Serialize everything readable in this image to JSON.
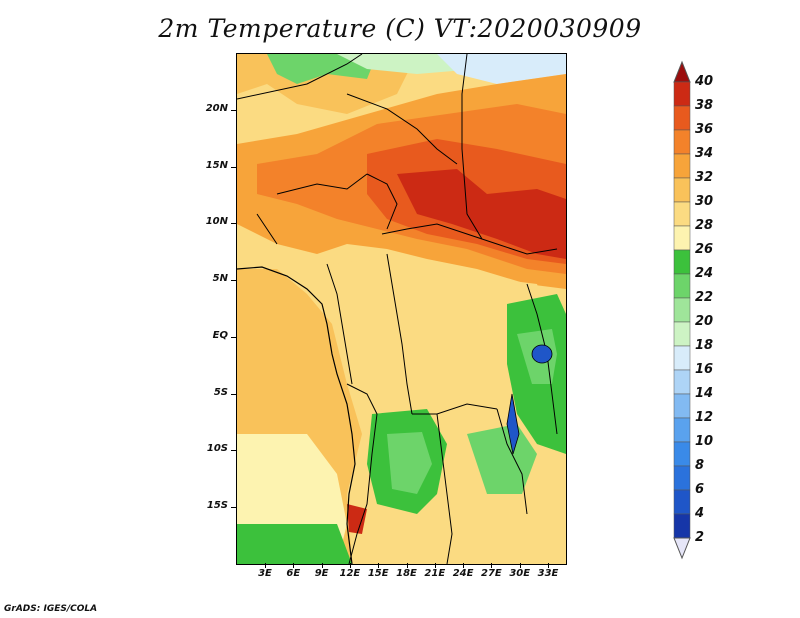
{
  "title": "2m Temperature (C) VT:2020030909",
  "credit": "GrADS: IGES/COLA",
  "map": {
    "lat_labels": [
      "20N",
      "15N",
      "10N",
      "5N",
      "EQ",
      "5S",
      "10S",
      "15S"
    ],
    "lon_labels": [
      "3E",
      "6E",
      "9E",
      "12E",
      "15E",
      "18E",
      "21E",
      "24E",
      "27E",
      "30E",
      "33E"
    ]
  },
  "colorbar": {
    "levels": [
      "2",
      "4",
      "6",
      "8",
      "10",
      "12",
      "14",
      "16",
      "18",
      "20",
      "22",
      "24",
      "26",
      "28",
      "30",
      "32",
      "34",
      "36",
      "38",
      "40"
    ],
    "colors": [
      "#0a1a6e",
      "#1636a8",
      "#1f56c8",
      "#2b72dc",
      "#3a8ae8",
      "#5aa2ee",
      "#82baf2",
      "#aed4f6",
      "#d8ecfa",
      "#cdf3c4",
      "#9fe59a",
      "#6dd46a",
      "#3cc13c",
      "#fdf3b0",
      "#fbdb82",
      "#f9c25a",
      "#f7a43a",
      "#f3822a",
      "#e85a1e",
      "#cc2a14",
      "#9a0e0e"
    ],
    "under_color": "#e6e6f8",
    "over_color": "#9a0e0e"
  }
}
